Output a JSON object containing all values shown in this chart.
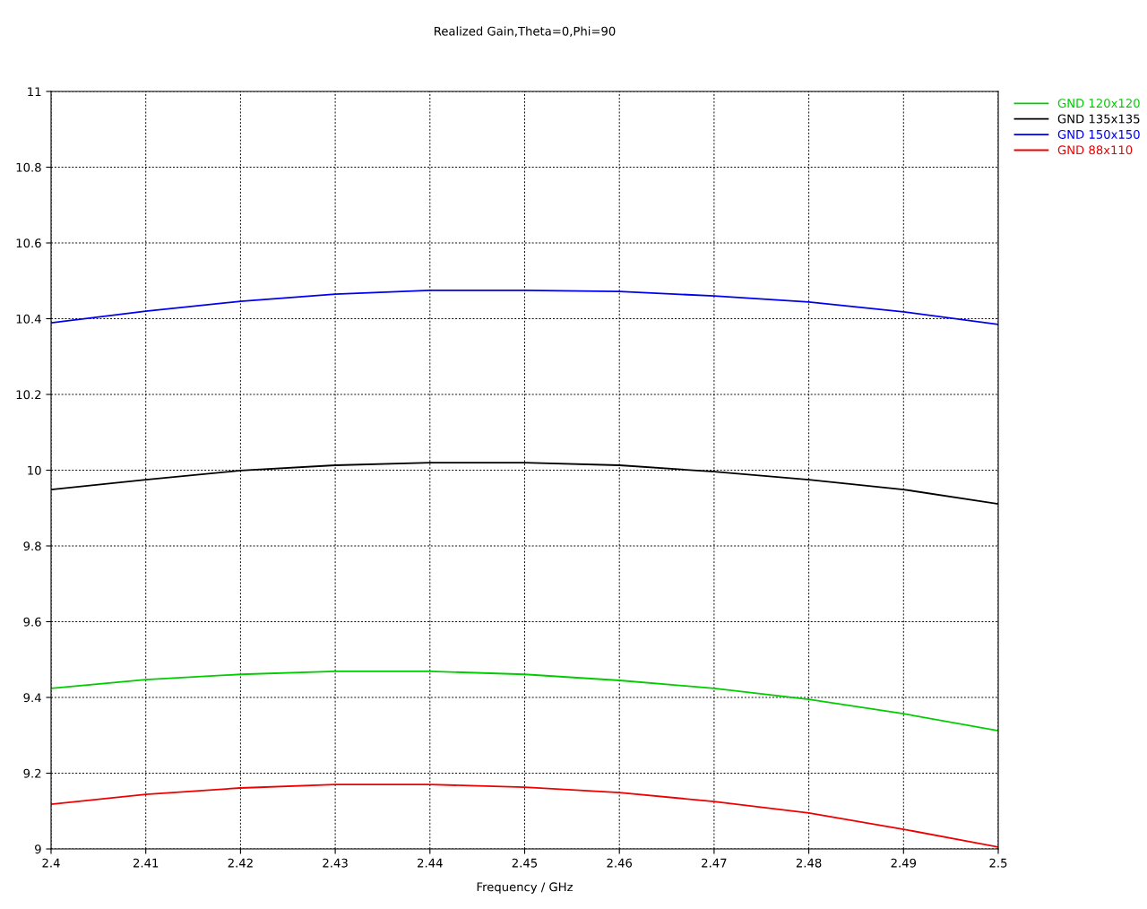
{
  "chart_data": {
    "type": "line",
    "title": "Realized Gain,Theta=0,Phi=90",
    "xlabel": "Frequency / GHz",
    "x": [
      2.4,
      2.41,
      2.42,
      2.43,
      2.44,
      2.45,
      2.46,
      2.47,
      2.48,
      2.49,
      2.5
    ],
    "series": [
      {
        "name": "GND 120x120",
        "color": "#00cc00",
        "values": [
          9.424,
          9.447,
          9.461,
          9.469,
          9.469,
          9.461,
          9.445,
          9.424,
          9.395,
          9.357,
          9.312
        ]
      },
      {
        "name": "GND 135x135",
        "color": "#000000",
        "values": [
          9.949,
          9.975,
          9.999,
          10.013,
          10.02,
          10.02,
          10.013,
          9.996,
          9.975,
          9.949,
          9.911
        ]
      },
      {
        "name": "GND 150x150",
        "color": "#0000ee",
        "values": [
          10.389,
          10.42,
          10.446,
          10.465,
          10.475,
          10.475,
          10.472,
          10.46,
          10.444,
          10.418,
          10.385
        ]
      },
      {
        "name": "GND 88x110",
        "color": "#ee0000",
        "values": [
          9.118,
          9.144,
          9.161,
          9.17,
          9.17,
          9.163,
          9.149,
          9.125,
          9.095,
          9.052,
          9.005
        ]
      }
    ],
    "xlim": [
      2.4,
      2.5
    ],
    "xticks": [
      2.4,
      2.41,
      2.42,
      2.43,
      2.44,
      2.45,
      2.46,
      2.47,
      2.48,
      2.49,
      2.5
    ],
    "ylim": [
      9,
      11
    ],
    "yticks": [
      9,
      9.2,
      9.4,
      9.6,
      9.8,
      10,
      10.2,
      10.4,
      10.6,
      10.8,
      11
    ],
    "grid": true,
    "legend": "top right",
    "marker": "none",
    "line_style": "solid"
  }
}
